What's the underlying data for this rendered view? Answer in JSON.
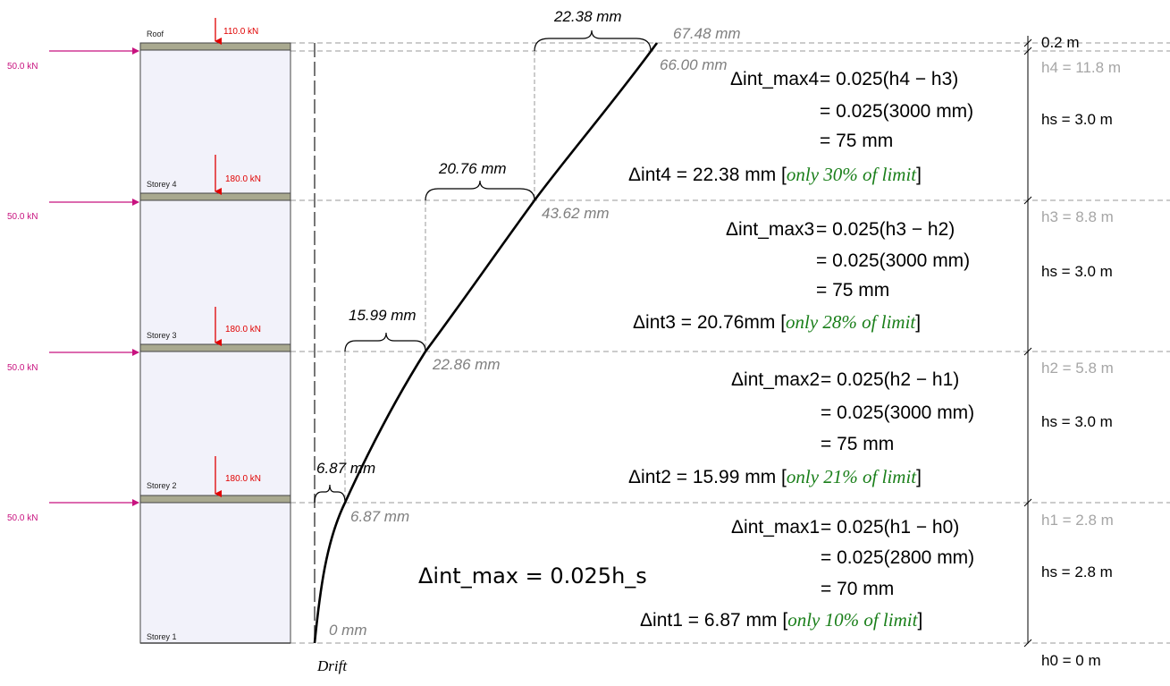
{
  "colors": {
    "lateral_force": "#c8127f",
    "gravity_load": "#e00000",
    "frame_fill": "#f2f2fa",
    "slab_fill": "#a9a98f",
    "drift_value": "#7f7f7f",
    "height_value": "#a6a6a6",
    "highlight_green": "#1a7f1a"
  },
  "frame": {
    "floor_labels": [
      "Roof",
      "Storey 4",
      "Storey 3",
      "Storey 2",
      "Storey 1"
    ],
    "gravity_loads": [
      "110.0 kN",
      "180.0 kN",
      "180.0 kN",
      "180.0 kN"
    ],
    "lateral_loads": [
      "50.0 kN",
      "50.0 kN",
      "50.0 kN",
      "50.0 kN"
    ]
  },
  "drift_axis_label": "Drift",
  "cumulative_drifts": [
    "67.48 mm",
    "66.00 mm",
    "43.62 mm",
    "22.86 mm",
    "6.87 mm",
    "0 mm"
  ],
  "interstorey_brackets": [
    "22.38 mm",
    "20.76 mm",
    "15.99 mm",
    "6.87 mm"
  ],
  "general_formula": "Δint_max = 0.025h_s",
  "storeys": [
    {
      "max_symbol": "Δint_max4",
      "line1": "= 0.025(h4 − h3)",
      "line2": "= 0.025(3000 mm)",
      "line3": "= 75 mm",
      "actual": "Δint4 = 22.38 mm",
      "note": "only 30% of limit"
    },
    {
      "max_symbol": "Δint_max3",
      "line1": "= 0.025(h3 − h2)",
      "line2": "= 0.025(3000 mm)",
      "line3": "= 75 mm",
      "actual": "Δint3 = 20.76mm",
      "note": "only 28% of limit"
    },
    {
      "max_symbol": "Δint_max2",
      "line1": "= 0.025(h2 − h1)",
      "line2": "= 0.025(3000 mm)",
      "line3": "= 75 mm",
      "actual": "Δint2 = 15.99 mm",
      "note": "only 21% of limit"
    },
    {
      "max_symbol": "Δint_max1",
      "line1": "= 0.025(h1 − h0)",
      "line2": "= 0.025(2800 mm)",
      "line3": "= 70 mm",
      "actual": "Δint1 = 6.87 mm",
      "note": "only 10% of limit"
    }
  ],
  "elevations": [
    "0.2 m",
    "h4 = 11.8 m",
    "h3 = 8.8 m",
    "h2 = 5.8 m",
    "h1 = 2.8 m",
    "h0 = 0 m"
  ],
  "storey_heights": [
    "hs = 3.0 m",
    "hs = 3.0 m",
    "hs = 3.0 m",
    "hs = 2.8 m"
  ]
}
